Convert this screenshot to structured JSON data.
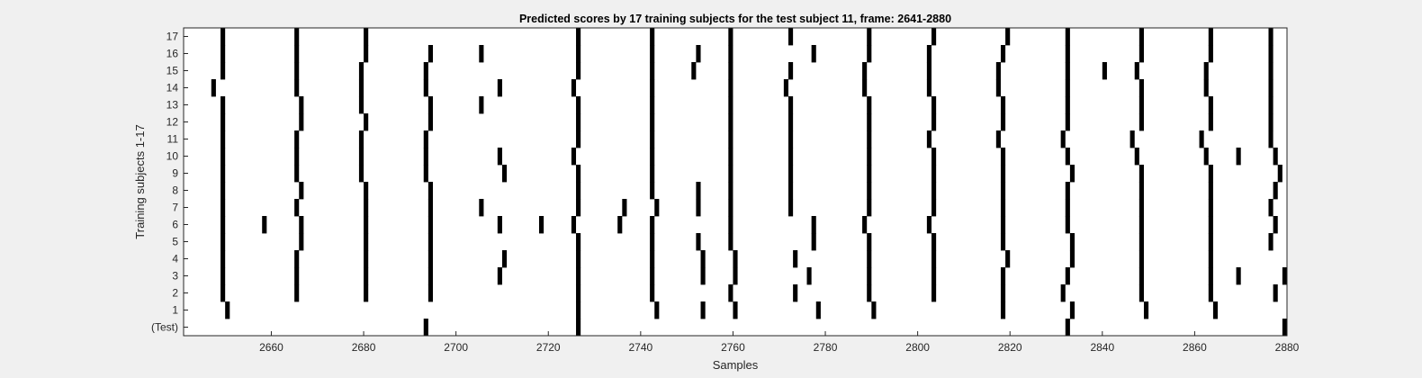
{
  "chart_data": {
    "type": "raster",
    "title": "Predicted scores by 17 training subjects for the test subject 11, frame: 2641-2880",
    "xlabel": "Samples",
    "ylabel": "Training subjects 1-17",
    "xlim": [
      2641,
      2880
    ],
    "xticks": [
      2660,
      2680,
      2700,
      2720,
      2740,
      2760,
      2780,
      2800,
      2820,
      2840,
      2860,
      2880
    ],
    "rows": [
      "(Test)",
      "1",
      "2",
      "3",
      "4",
      "5",
      "6",
      "7",
      "8",
      "9",
      "10",
      "11",
      "12",
      "13",
      "14",
      "15",
      "16",
      "17"
    ],
    "events": {
      "(Test)": [
        2694,
        2727,
        2833,
        2880
      ],
      "1": [
        2651,
        2727,
        2744,
        2754,
        2761,
        2779,
        2791,
        2819,
        2834,
        2850,
        2865
      ],
      "2": [
        2650,
        2666,
        2681,
        2695,
        2727,
        2743,
        2760,
        2774,
        2790,
        2804,
        2819,
        2832,
        2849,
        2864,
        2878
      ],
      "3": [
        2650,
        2666,
        2681,
        2695,
        2710,
        2727,
        2743,
        2754,
        2761,
        2777,
        2790,
        2804,
        2819,
        2833,
        2849,
        2864,
        2870,
        2880
      ],
      "4": [
        2650,
        2666,
        2681,
        2695,
        2711,
        2727,
        2743,
        2754,
        2761,
        2774,
        2790,
        2804,
        2820,
        2834,
        2849,
        2864
      ],
      "5": [
        2650,
        2667,
        2681,
        2695,
        2727,
        2743,
        2753,
        2760,
        2778,
        2790,
        2804,
        2819,
        2834,
        2849,
        2864,
        2877
      ],
      "6": [
        2650,
        2659,
        2667,
        2681,
        2695,
        2710,
        2719,
        2726,
        2736,
        2743,
        2760,
        2778,
        2789,
        2803,
        2819,
        2833,
        2849,
        2864,
        2878
      ],
      "7": [
        2650,
        2666,
        2681,
        2695,
        2706,
        2727,
        2737,
        2744,
        2753,
        2760,
        2773,
        2790,
        2804,
        2819,
        2833,
        2849,
        2864,
        2877
      ],
      "8": [
        2650,
        2667,
        2681,
        2695,
        2727,
        2743,
        2753,
        2760,
        2773,
        2790,
        2804,
        2819,
        2833,
        2849,
        2864,
        2878
      ],
      "9": [
        2650,
        2666,
        2680,
        2694,
        2711,
        2727,
        2743,
        2760,
        2773,
        2790,
        2804,
        2819,
        2834,
        2849,
        2864,
        2879
      ],
      "10": [
        2650,
        2666,
        2680,
        2694,
        2710,
        2726,
        2743,
        2760,
        2773,
        2790,
        2804,
        2819,
        2833,
        2848,
        2863,
        2870,
        2878
      ],
      "11": [
        2650,
        2666,
        2680,
        2694,
        2727,
        2743,
        2760,
        2773,
        2790,
        2803,
        2818,
        2832,
        2847,
        2862,
        2877
      ],
      "12": [
        2650,
        2667,
        2681,
        2695,
        2727,
        2743,
        2760,
        2773,
        2790,
        2804,
        2819,
        2833,
        2849,
        2864,
        2877
      ],
      "13": [
        2650,
        2667,
        2680,
        2695,
        2706,
        2727,
        2743,
        2760,
        2773,
        2790,
        2804,
        2819,
        2833,
        2849,
        2864,
        2877
      ],
      "14": [
        2648,
        2666,
        2680,
        2694,
        2710,
        2726,
        2743,
        2760,
        2772,
        2789,
        2803,
        2818,
        2833,
        2849,
        2863,
        2877
      ],
      "15": [
        2650,
        2666,
        2680,
        2694,
        2727,
        2743,
        2752,
        2760,
        2773,
        2789,
        2803,
        2818,
        2833,
        2841,
        2848,
        2863,
        2877
      ],
      "16": [
        2650,
        2666,
        2681,
        2695,
        2706,
        2727,
        2743,
        2753,
        2760,
        2778,
        2790,
        2803,
        2819,
        2833,
        2849,
        2864,
        2877
      ],
      "17": [
        2650,
        2666,
        2681,
        2727,
        2743,
        2760,
        2773,
        2790,
        2804,
        2820,
        2833,
        2849,
        2864,
        2877
      ]
    },
    "grid": false,
    "legend": "none",
    "colors": {
      "figure_bg": "#f0f0f0",
      "axes_bg": "#ffffff",
      "mark": "#000000",
      "text": "#262626",
      "axis": "#262626"
    }
  }
}
